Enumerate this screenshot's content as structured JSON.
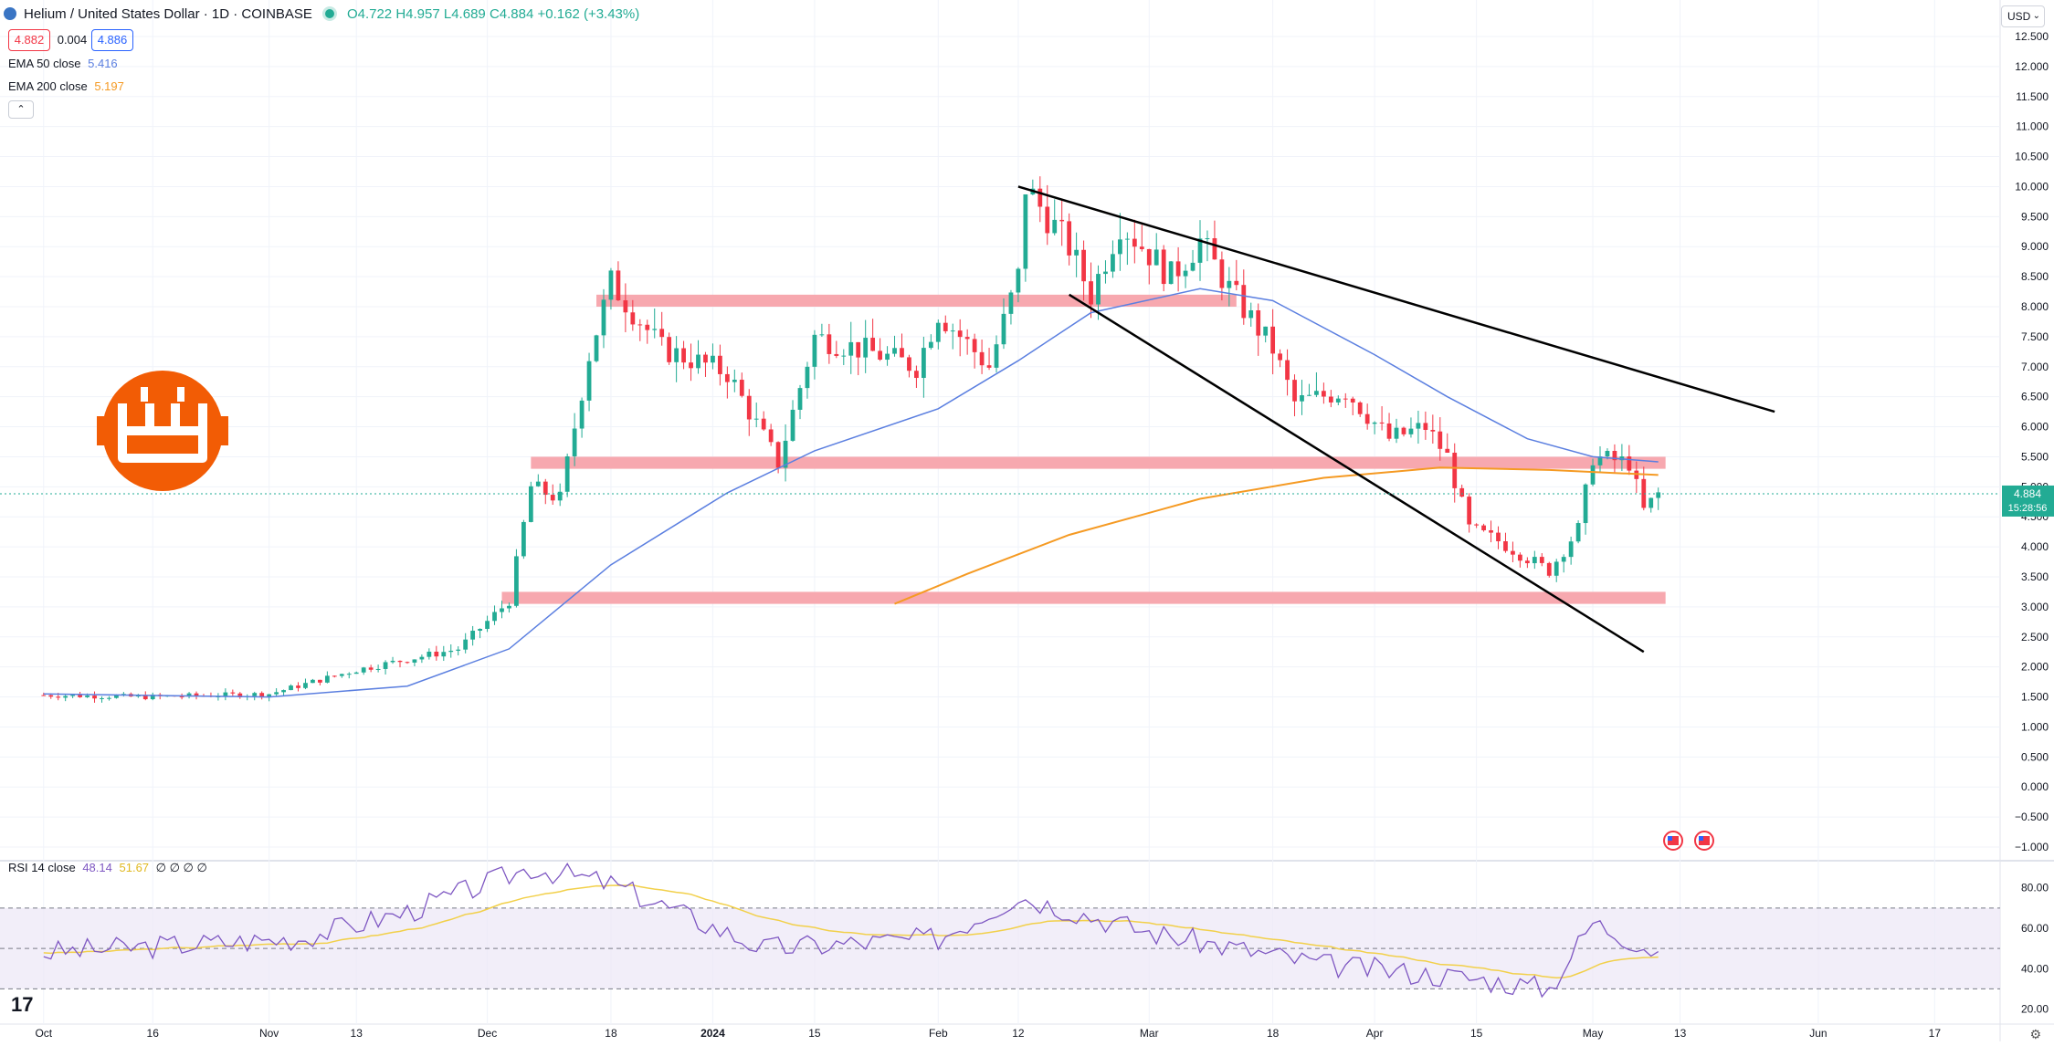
{
  "header": {
    "symbol_title": "Helium / United States Dollar · 1D · COINBASE",
    "open": "O4.722",
    "high": "H4.957",
    "low": "L4.689",
    "close": "C4.884",
    "change": "+0.162 (+3.43%)",
    "bid": "4.882",
    "spread": "0.004",
    "ask": "4.886"
  },
  "currency_button": "USD",
  "indicators": {
    "ema50": {
      "label": "EMA 50 close",
      "value": "5.416",
      "color": "#5b7fe0"
    },
    "ema200": {
      "label": "EMA 200 close",
      "value": "5.197",
      "color": "#f59a23"
    }
  },
  "rsi": {
    "label": "RSI 14 close",
    "value": "48.14",
    "ma_value": "51.67",
    "extras": "∅ ∅ ∅ ∅",
    "line_color": "#7e57c2",
    "ma_color": "#f2d04a",
    "y_ticks": [
      "80.00",
      "60.00",
      "40.00",
      "20.00"
    ]
  },
  "last_price": {
    "value": "4.884",
    "countdown": "15:28:56",
    "color": "#22ab94"
  },
  "colors": {
    "up": "#22ab94",
    "down": "#f23645",
    "zone": "#f7a3ab",
    "trendline": "#000000"
  },
  "icons": [
    "bitcoin-logo-icon",
    "us-flag-icon",
    "tradingview-logo-icon",
    "settings-gear-icon",
    "chevron-down-icon"
  ],
  "chart_data": {
    "type": "candlestick",
    "title": "Helium / United States Dollar · 1D · COINBASE",
    "y_axis_ticks": [
      "12.500",
      "12.000",
      "11.500",
      "11.000",
      "10.500",
      "10.000",
      "9.500",
      "9.000",
      "8.500",
      "8.000",
      "7.500",
      "7.000",
      "6.500",
      "6.000",
      "5.500",
      "5.000",
      "4.500",
      "4.000",
      "3.500",
      "3.000",
      "2.500",
      "2.000",
      "1.500",
      "1.000",
      "0.500",
      "0.000",
      "−0.500",
      "−1.000"
    ],
    "ylim": [
      -1.0,
      12.5
    ],
    "x_axis_ticks": [
      "Oct",
      "16",
      "Nov",
      "13",
      "Dec",
      "18",
      "2024",
      "15",
      "Feb",
      "12",
      "Mar",
      "18",
      "Apr",
      "15",
      "May",
      "13",
      "Jun",
      "17"
    ],
    "legend": "top-left",
    "grid": true,
    "key_levels": [
      {
        "name": "resistance zone",
        "from": 8.0,
        "to": 8.2
      },
      {
        "name": "support zone",
        "from": 5.3,
        "to": 5.5
      },
      {
        "name": "support zone",
        "from": 3.05,
        "to": 3.25
      }
    ],
    "trendlines": [
      {
        "from": [
          "2024-02-12",
          10.0
        ],
        "to": [
          "2024-05-26",
          6.25
        ]
      },
      {
        "from": [
          "2024-02-19",
          8.2
        ],
        "to": [
          "2024-05-08",
          2.25
        ]
      }
    ],
    "ohlc_points": [
      [
        "2023-10-01",
        1.53
      ],
      [
        "2023-10-15",
        1.5
      ],
      [
        "2023-11-01",
        1.55
      ],
      [
        "2023-11-13",
        1.95
      ],
      [
        "2023-11-27",
        2.3
      ],
      [
        "2023-12-04",
        3.1
      ],
      [
        "2023-12-07",
        5.0
      ],
      [
        "2023-12-11",
        4.8
      ],
      [
        "2023-12-15",
        7.2
      ],
      [
        "2023-12-18",
        8.4
      ],
      [
        "2023-12-25",
        7.3
      ],
      [
        "2024-01-03",
        6.9
      ],
      [
        "2024-01-10",
        5.4
      ],
      [
        "2024-01-15",
        7.5
      ],
      [
        "2024-01-24",
        7.2
      ],
      [
        "2024-01-29",
        7.0
      ],
      [
        "2024-02-01",
        7.9
      ],
      [
        "2024-02-08",
        7.0
      ],
      [
        "2024-02-12",
        8.5
      ],
      [
        "2024-02-13",
        10.0
      ],
      [
        "2024-02-19",
        9.0
      ],
      [
        "2024-02-22",
        8.2
      ],
      [
        "2024-02-26",
        9.4
      ],
      [
        "2024-03-04",
        8.5
      ],
      [
        "2024-03-08",
        9.1
      ],
      [
        "2024-03-12",
        8.3
      ],
      [
        "2024-03-18",
        7.3
      ],
      [
        "2024-03-21",
        6.4
      ],
      [
        "2024-03-28",
        6.6
      ],
      [
        "2024-04-03",
        5.8
      ],
      [
        "2024-04-08",
        6.0
      ],
      [
        "2024-04-11",
        5.5
      ],
      [
        "2024-04-14",
        4.3
      ],
      [
        "2024-04-18",
        4.1
      ],
      [
        "2024-04-25",
        3.6
      ],
      [
        "2024-04-29",
        4.3
      ],
      [
        "2024-05-01",
        5.5
      ],
      [
        "2024-05-06",
        5.4
      ],
      [
        "2024-05-08",
        4.6
      ],
      [
        "2024-05-10",
        4.884
      ]
    ],
    "series": [
      {
        "name": "EMA 50 close",
        "values": [
          [
            "2023-10-01",
            1.55
          ],
          [
            "2023-11-01",
            1.5
          ],
          [
            "2023-11-20",
            1.68
          ],
          [
            "2023-12-04",
            2.3
          ],
          [
            "2023-12-18",
            3.7
          ],
          [
            "2024-01-03",
            4.9
          ],
          [
            "2024-01-15",
            5.6
          ],
          [
            "2024-02-01",
            6.3
          ],
          [
            "2024-02-12",
            7.1
          ],
          [
            "2024-02-22",
            7.9
          ],
          [
            "2024-03-08",
            8.3
          ],
          [
            "2024-03-18",
            8.1
          ],
          [
            "2024-04-01",
            7.2
          ],
          [
            "2024-04-11",
            6.5
          ],
          [
            "2024-04-22",
            5.8
          ],
          [
            "2024-05-01",
            5.5
          ],
          [
            "2024-05-10",
            5.416
          ]
        ]
      },
      {
        "name": "EMA 200 close",
        "values": [
          [
            "2024-01-26",
            3.05
          ],
          [
            "2024-02-05",
            3.55
          ],
          [
            "2024-02-19",
            4.2
          ],
          [
            "2024-03-08",
            4.8
          ],
          [
            "2024-03-25",
            5.15
          ],
          [
            "2024-04-10",
            5.32
          ],
          [
            "2024-04-25",
            5.28
          ],
          [
            "2024-05-10",
            5.197
          ]
        ]
      }
    ],
    "rsi_series": {
      "name": "RSI 14 close",
      "values": [
        [
          "2023-10-01",
          48
        ],
        [
          "2023-11-05",
          55
        ],
        [
          "2023-11-20",
          68
        ],
        [
          "2023-12-07",
          90
        ],
        [
          "2023-12-18",
          82
        ],
        [
          "2024-01-08",
          50
        ],
        [
          "2024-02-01",
          55
        ],
        [
          "2024-02-12",
          76
        ],
        [
          "2024-03-01",
          58
        ],
        [
          "2024-03-25",
          42
        ],
        [
          "2024-04-15",
          35
        ],
        [
          "2024-04-25",
          30
        ],
        [
          "2024-05-01",
          63
        ],
        [
          "2024-05-10",
          48.14
        ]
      ]
    }
  }
}
